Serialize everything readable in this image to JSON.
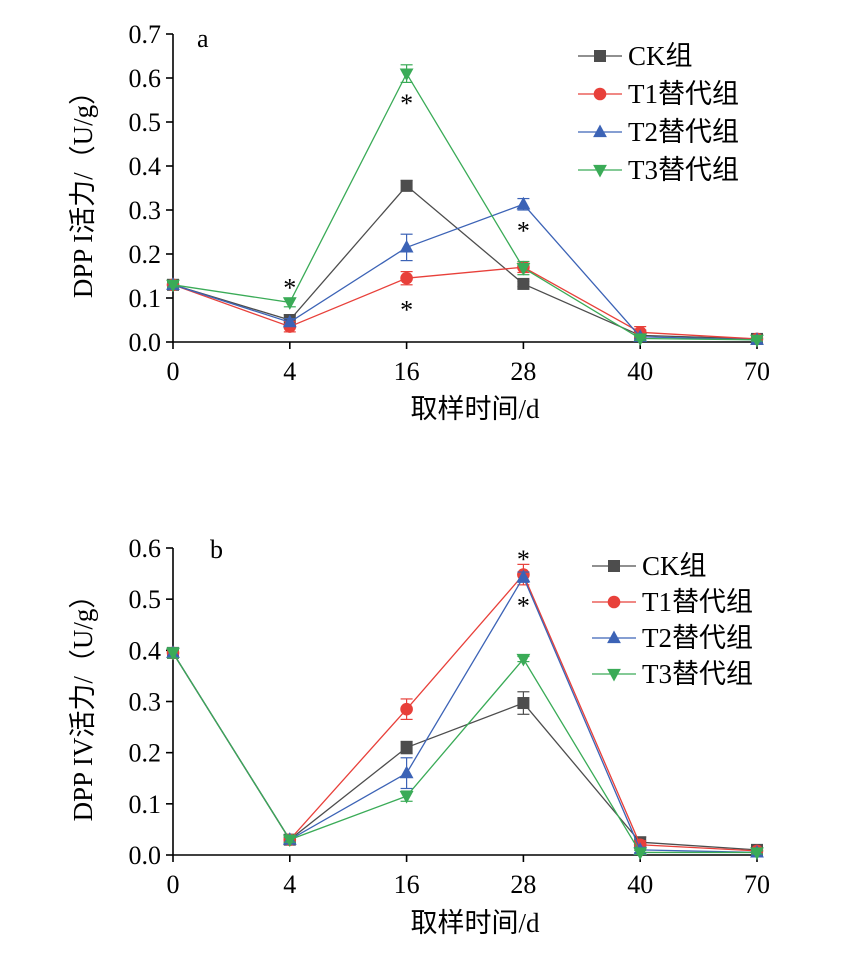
{
  "chart_data": [
    {
      "type": "line",
      "panel_label": "a",
      "ylabel": "DPP I活力/（U/g）",
      "xlabel": "取样时间/d",
      "categories": [
        "0",
        "4",
        "16",
        "28",
        "40",
        "70"
      ],
      "ylim": [
        0,
        0.7
      ],
      "yticks": [
        "0.0",
        "0.1",
        "0.2",
        "0.3",
        "0.4",
        "0.5",
        "0.6",
        "0.7"
      ],
      "grid": false,
      "legend_position": "top-right",
      "series": [
        {
          "name": "CK组",
          "color": "#4d4d4d",
          "marker": "square",
          "values": [
            0.13,
            0.05,
            0.355,
            0.132,
            0.015,
            0.007
          ],
          "errors": [
            0.005,
            0.012,
            0.012,
            0.006,
            0.006,
            0.003
          ]
        },
        {
          "name": "T1替代组",
          "color": "#e8403a",
          "marker": "circle",
          "values": [
            0.13,
            0.035,
            0.145,
            0.17,
            0.022,
            0.007
          ],
          "errors": [
            0.005,
            0.012,
            0.015,
            0.012,
            0.013,
            0.003
          ]
        },
        {
          "name": "T2替代组",
          "color": "#3c63b6",
          "marker": "triangle-up",
          "values": [
            0.13,
            0.045,
            0.215,
            0.313,
            0.012,
            0.005
          ],
          "errors": [
            0.005,
            0.008,
            0.03,
            0.013,
            0.005,
            0.003
          ]
        },
        {
          "name": "T3替代组",
          "color": "#3aab57",
          "marker": "triangle-down",
          "values": [
            0.13,
            0.09,
            0.61,
            0.168,
            0.008,
            0.005
          ],
          "errors": [
            0.005,
            0.01,
            0.02,
            0.015,
            0.004,
            0.003
          ]
        }
      ],
      "annotations": [
        {
          "text": "*",
          "x": "4",
          "y": 0.135
        },
        {
          "text": "*",
          "x": "16",
          "y": 0.555
        },
        {
          "text": "*",
          "x": "16",
          "y": 0.085
        },
        {
          "text": "*",
          "x": "28",
          "y": 0.265
        }
      ]
    },
    {
      "type": "line",
      "panel_label": "b",
      "ylabel": "DPP IV活力/（U/g）",
      "xlabel": "取样时间/d",
      "categories": [
        "0",
        "4",
        "16",
        "28",
        "40",
        "70"
      ],
      "ylim": [
        0,
        0.6
      ],
      "yticks": [
        "0.0",
        "0.1",
        "0.2",
        "0.3",
        "0.4",
        "0.5",
        "0.6"
      ],
      "grid": false,
      "legend_position": "top-right",
      "series": [
        {
          "name": "CK组",
          "color": "#4d4d4d",
          "marker": "square",
          "values": [
            0.395,
            0.03,
            0.21,
            0.297,
            0.025,
            0.01
          ],
          "errors": [
            0.01,
            0.005,
            0.012,
            0.022,
            0.01,
            0.004
          ]
        },
        {
          "name": "T1替代组",
          "color": "#e8403a",
          "marker": "circle",
          "values": [
            0.395,
            0.03,
            0.285,
            0.548,
            0.02,
            0.008
          ],
          "errors": [
            0.01,
            0.005,
            0.02,
            0.02,
            0.008,
            0.004
          ]
        },
        {
          "name": "T2替代组",
          "color": "#3c63b6",
          "marker": "triangle-up",
          "values": [
            0.395,
            0.03,
            0.16,
            0.543,
            0.01,
            0.005
          ],
          "errors": [
            0.01,
            0.005,
            0.03,
            0.01,
            0.005,
            0.003
          ]
        },
        {
          "name": "T3替代组",
          "color": "#3aab57",
          "marker": "triangle-down",
          "values": [
            0.395,
            0.03,
            0.115,
            0.383,
            0.005,
            0.005
          ],
          "errors": [
            0.01,
            0.005,
            0.01,
            0.005,
            0.004,
            0.003
          ]
        }
      ],
      "annotations": [
        {
          "text": "*",
          "x": "28",
          "y": 0.588
        },
        {
          "text": "*",
          "x": "28",
          "y": 0.497
        }
      ]
    }
  ]
}
